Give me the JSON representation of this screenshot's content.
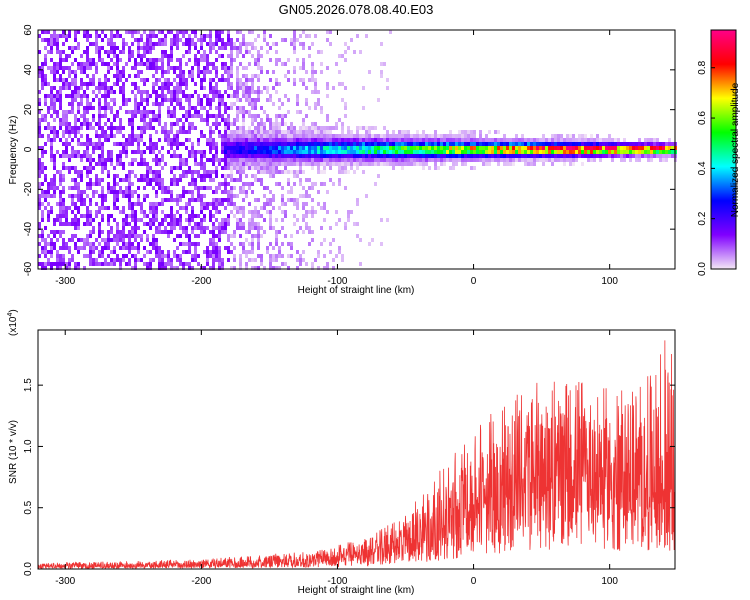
{
  "title": "GN05.2026.078.08.40.E03",
  "chart_data": [
    {
      "type": "heatmap",
      "xlabel": "Height of straight line (km)",
      "ylabel": "Frequency (Hz)",
      "xlim": [
        -320,
        148
      ],
      "ylim": [
        -60,
        60
      ],
      "xticks": [
        -300,
        -200,
        -100,
        0,
        100
      ],
      "yticks": [
        -60,
        -40,
        -20,
        0,
        20,
        40,
        60
      ],
      "colorbar": {
        "label": "Normalized spectral amplitude",
        "range": [
          0.0,
          0.95
        ],
        "ticks": [
          0.0,
          0.2,
          0.4,
          0.6,
          0.8
        ],
        "colormap": [
          "#f4e8f6",
          "#8000ff",
          "#0000ff",
          "#00ffff",
          "#00ff00",
          "#ffff00",
          "#ff0000",
          "#ff0088"
        ]
      },
      "features": {
        "noise_region_x": [
          -320,
          -55
        ],
        "dense_noise_until_x": -180,
        "band_start_x": -183,
        "band_center_hz": 0,
        "band_halfwidth_hz": [
          10,
          4
        ]
      },
      "grid": false,
      "legend": "none"
    },
    {
      "type": "line",
      "xlabel": "Height of straight line (km)",
      "ylabel": "SNR (10 * v/v)",
      "scale_label": "(x10",
      "scale_exp": "4",
      "scale_close": ")",
      "xlim": [
        -320,
        148
      ],
      "ylim": [
        0,
        1.95
      ],
      "xticks": [
        -300,
        -200,
        -100,
        0,
        100
      ],
      "yticks": [
        0.0,
        0.5,
        1.0,
        1.5
      ],
      "ytick_labels": [
        "0.0",
        "0.5",
        "1.0",
        "1.5"
      ],
      "series": [
        {
          "color": "#ee3333",
          "envelope_x": [
            -320,
            -200,
            -120,
            -80,
            -50,
            -30,
            -10,
            0,
            10,
            30,
            50,
            80,
            100,
            120,
            140,
            148
          ],
          "envelope_mean": [
            0.02,
            0.03,
            0.06,
            0.12,
            0.2,
            0.3,
            0.45,
            0.55,
            0.6,
            0.68,
            0.72,
            0.75,
            0.72,
            0.68,
            0.65,
            0.6
          ],
          "envelope_max": [
            0.05,
            0.08,
            0.15,
            0.25,
            0.45,
            0.75,
            1.0,
            1.1,
            1.25,
            1.45,
            1.55,
            1.55,
            1.5,
            1.45,
            1.9,
            1.7
          ]
        }
      ],
      "grid": false,
      "legend": "none"
    }
  ]
}
